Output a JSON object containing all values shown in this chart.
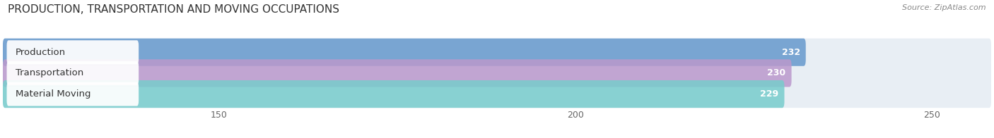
{
  "title": "PRODUCTION, TRANSPORTATION AND MOVING OCCUPATIONS",
  "source": "Source: ZipAtlas.com",
  "categories": [
    "Production",
    "Transportation",
    "Material Moving"
  ],
  "values": [
    232,
    230,
    229
  ],
  "bar_colors": [
    "#6699CC",
    "#BB99CC",
    "#77CCCC"
  ],
  "bar_bg_color": "#E8EEF4",
  "value_labels": [
    "232",
    "230",
    "229"
  ],
  "xlim_min": 120,
  "xlim_max": 258,
  "xticks": [
    150,
    200,
    250
  ],
  "title_fontsize": 11,
  "label_fontsize": 9.5,
  "value_fontsize": 9,
  "background_color": "#ffffff"
}
